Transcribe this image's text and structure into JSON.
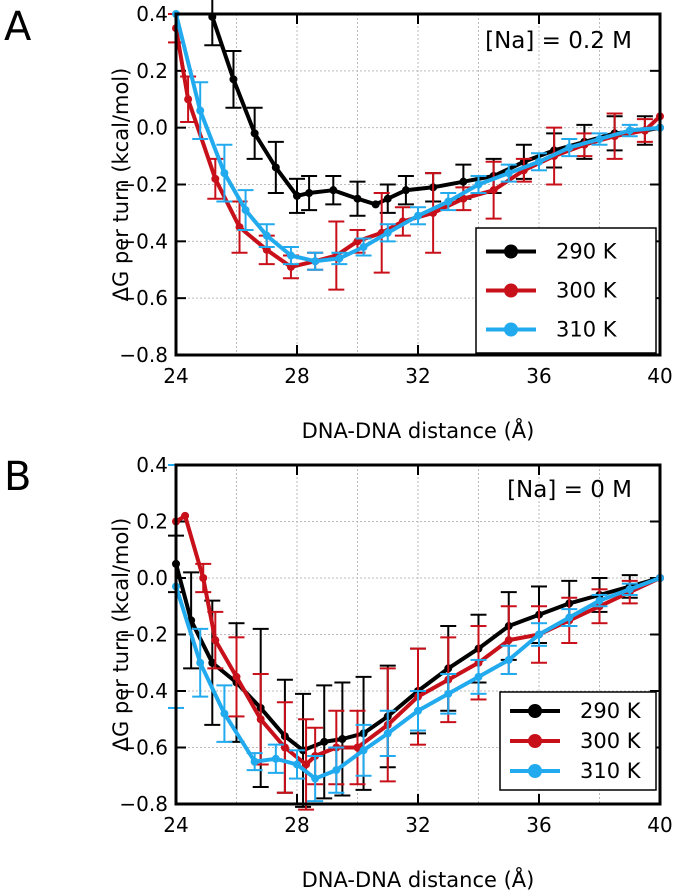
{
  "chart_data": [
    {
      "type": "line",
      "panel_label": "A",
      "annotation": "[Na] = 0.2 M",
      "xlabel": "DNA-DNA distance (Å)",
      "ylabel": "ΔG per turn (kcal/mol)",
      "xlim": [
        24,
        40
      ],
      "ylim": [
        -0.8,
        0.4
      ],
      "xticks": [
        "24",
        "28",
        "32",
        "36",
        "40"
      ],
      "yticks": [
        "0.4",
        "0.2",
        "0.0",
        "−0.2",
        "−0.4",
        "−0.6",
        "−0.8"
      ],
      "grid": true,
      "legend_position": "bottom-right",
      "series": [
        {
          "name": "290 K",
          "color": "#000000",
          "x": [
            25.2,
            25.9,
            26.6,
            27.3,
            28.0,
            28.4,
            29.2,
            30.0,
            30.6,
            31.0,
            31.6,
            32.5,
            33.5,
            34.5,
            35.5,
            36.5,
            37.5,
            38.5,
            39.5,
            40.0
          ],
          "y": [
            0.39,
            0.17,
            -0.02,
            -0.14,
            -0.24,
            -0.23,
            -0.22,
            -0.25,
            -0.27,
            -0.25,
            -0.22,
            -0.21,
            -0.19,
            -0.17,
            -0.12,
            -0.08,
            -0.05,
            -0.02,
            -0.01,
            0.0
          ],
          "err": [
            0.1,
            0.1,
            0.09,
            0.09,
            0.06,
            0.06,
            0.05,
            0.06,
            0,
            0.05,
            0.05,
            0.05,
            0.06,
            0.06,
            0.06,
            0.06,
            0.06,
            0.06,
            0.05,
            0
          ]
        },
        {
          "name": "300 K",
          "color": "#c8101a",
          "x": [
            24.0,
            24.4,
            25.3,
            26.1,
            27.0,
            27.8,
            28.6,
            29.3,
            30.0,
            30.8,
            31.5,
            32.5,
            33.5,
            34.5,
            35.5,
            36.5,
            37.5,
            38.5,
            39.5,
            40.0
          ],
          "y": [
            0.35,
            0.1,
            -0.18,
            -0.35,
            -0.43,
            -0.49,
            -0.47,
            -0.45,
            -0.4,
            -0.37,
            -0.33,
            -0.3,
            -0.25,
            -0.22,
            -0.15,
            -0.1,
            -0.06,
            -0.03,
            -0.01,
            0.04
          ],
          "err": [
            0.05,
            0.08,
            0.07,
            0.09,
            0.05,
            0.04,
            0.03,
            0.12,
            0.04,
            0.14,
            0.05,
            0.14,
            0.04,
            0.1,
            0.04,
            0.1,
            0.04,
            0.08,
            0.04,
            0
          ]
        },
        {
          "name": "310 K",
          "color": "#22aaee",
          "x": [
            24.0,
            24.8,
            25.6,
            26.3,
            27.0,
            27.8,
            28.6,
            29.4,
            30.2,
            31.0,
            32.0,
            33.0,
            34.0,
            35.0,
            36.0,
            37.0,
            38.0,
            39.0,
            40.0
          ],
          "y": [
            0.4,
            0.06,
            -0.16,
            -0.29,
            -0.38,
            -0.45,
            -0.47,
            -0.46,
            -0.42,
            -0.37,
            -0.31,
            -0.26,
            -0.2,
            -0.16,
            -0.12,
            -0.07,
            -0.04,
            -0.01,
            0.0
          ],
          "err": [
            0,
            0.1,
            0.1,
            0.07,
            0.04,
            0.03,
            0.03,
            0.02,
            0.03,
            0.03,
            0.03,
            0.03,
            0.03,
            0.03,
            0.03,
            0.03,
            0.02,
            0.02,
            0
          ]
        }
      ]
    },
    {
      "type": "line",
      "panel_label": "B",
      "annotation": "[Na] = 0 M",
      "xlabel": "DNA-DNA distance (Å)",
      "ylabel": "ΔG per turn (kcal/mol)",
      "xlim": [
        24,
        40
      ],
      "ylim": [
        -0.8,
        0.4
      ],
      "xticks": [
        "24",
        "28",
        "32",
        "36",
        "40"
      ],
      "yticks": [
        "0.4",
        "0.2",
        "0.0",
        "−0.2",
        "−0.4",
        "−0.6",
        "−0.8"
      ],
      "grid": true,
      "legend_position": "bottom-right",
      "series": [
        {
          "name": "290 K",
          "color": "#000000",
          "x": [
            24.0,
            24.5,
            25.2,
            26.0,
            26.8,
            27.6,
            28.2,
            28.9,
            29.5,
            30.2,
            31.0,
            32.0,
            33.0,
            34.0,
            35.0,
            36.0,
            37.0,
            38.0,
            39.0,
            40.0
          ],
          "y": [
            0.05,
            -0.15,
            -0.3,
            -0.37,
            -0.46,
            -0.56,
            -0.61,
            -0.58,
            -0.57,
            -0.55,
            -0.49,
            -0.4,
            -0.32,
            -0.25,
            -0.17,
            -0.13,
            -0.09,
            -0.06,
            -0.03,
            0.0
          ],
          "err": [
            0.1,
            0.17,
            0.22,
            0.21,
            0.28,
            0.2,
            0.2,
            0.2,
            0.2,
            0.2,
            0.18,
            0.15,
            0.15,
            0.12,
            0.12,
            0.1,
            0.08,
            0.06,
            0.04,
            0
          ]
        },
        {
          "name": "300 K",
          "color": "#c8101a",
          "x": [
            24.0,
            24.3,
            24.9,
            25.3,
            26.0,
            26.8,
            27.6,
            28.3,
            28.6,
            29.3,
            30.0,
            31.0,
            32.0,
            33.0,
            34.0,
            35.0,
            36.0,
            37.0,
            38.0,
            39.0,
            40.0
          ],
          "y": [
            0.2,
            0.22,
            0.0,
            -0.22,
            -0.35,
            -0.5,
            -0.6,
            -0.66,
            -0.63,
            -0.6,
            -0.6,
            -0.52,
            -0.42,
            -0.36,
            -0.3,
            -0.22,
            -0.2,
            -0.15,
            -0.1,
            -0.05,
            0.0
          ],
          "err": [
            0,
            0,
            0.05,
            0.1,
            0.14,
            0.16,
            0.16,
            0.16,
            0.1,
            0.13,
            0.13,
            0.2,
            0.17,
            0.15,
            0.13,
            0.12,
            0.1,
            0.08,
            0.06,
            0.04,
            0
          ]
        },
        {
          "name": "310 K",
          "color": "#22aaee",
          "x": [
            24.0,
            24.8,
            25.6,
            26.6,
            27.3,
            28.0,
            28.6,
            29.3,
            30.2,
            31.0,
            32.0,
            33.0,
            34.0,
            35.0,
            36.0,
            37.0,
            38.0,
            39.0,
            40.0
          ],
          "y": [
            -0.03,
            -0.3,
            -0.48,
            -0.65,
            -0.64,
            -0.66,
            -0.71,
            -0.68,
            -0.61,
            -0.55,
            -0.47,
            -0.41,
            -0.35,
            -0.29,
            -0.2,
            -0.14,
            -0.08,
            -0.04,
            0.0
          ],
          "err": [
            0.43,
            0.12,
            0.1,
            0.03,
            0.05,
            0.05,
            0.08,
            0.08,
            0.09,
            0.08,
            0.07,
            0.07,
            0.06,
            0.05,
            0.04,
            0.03,
            0.02,
            0.02,
            0
          ]
        }
      ]
    }
  ]
}
